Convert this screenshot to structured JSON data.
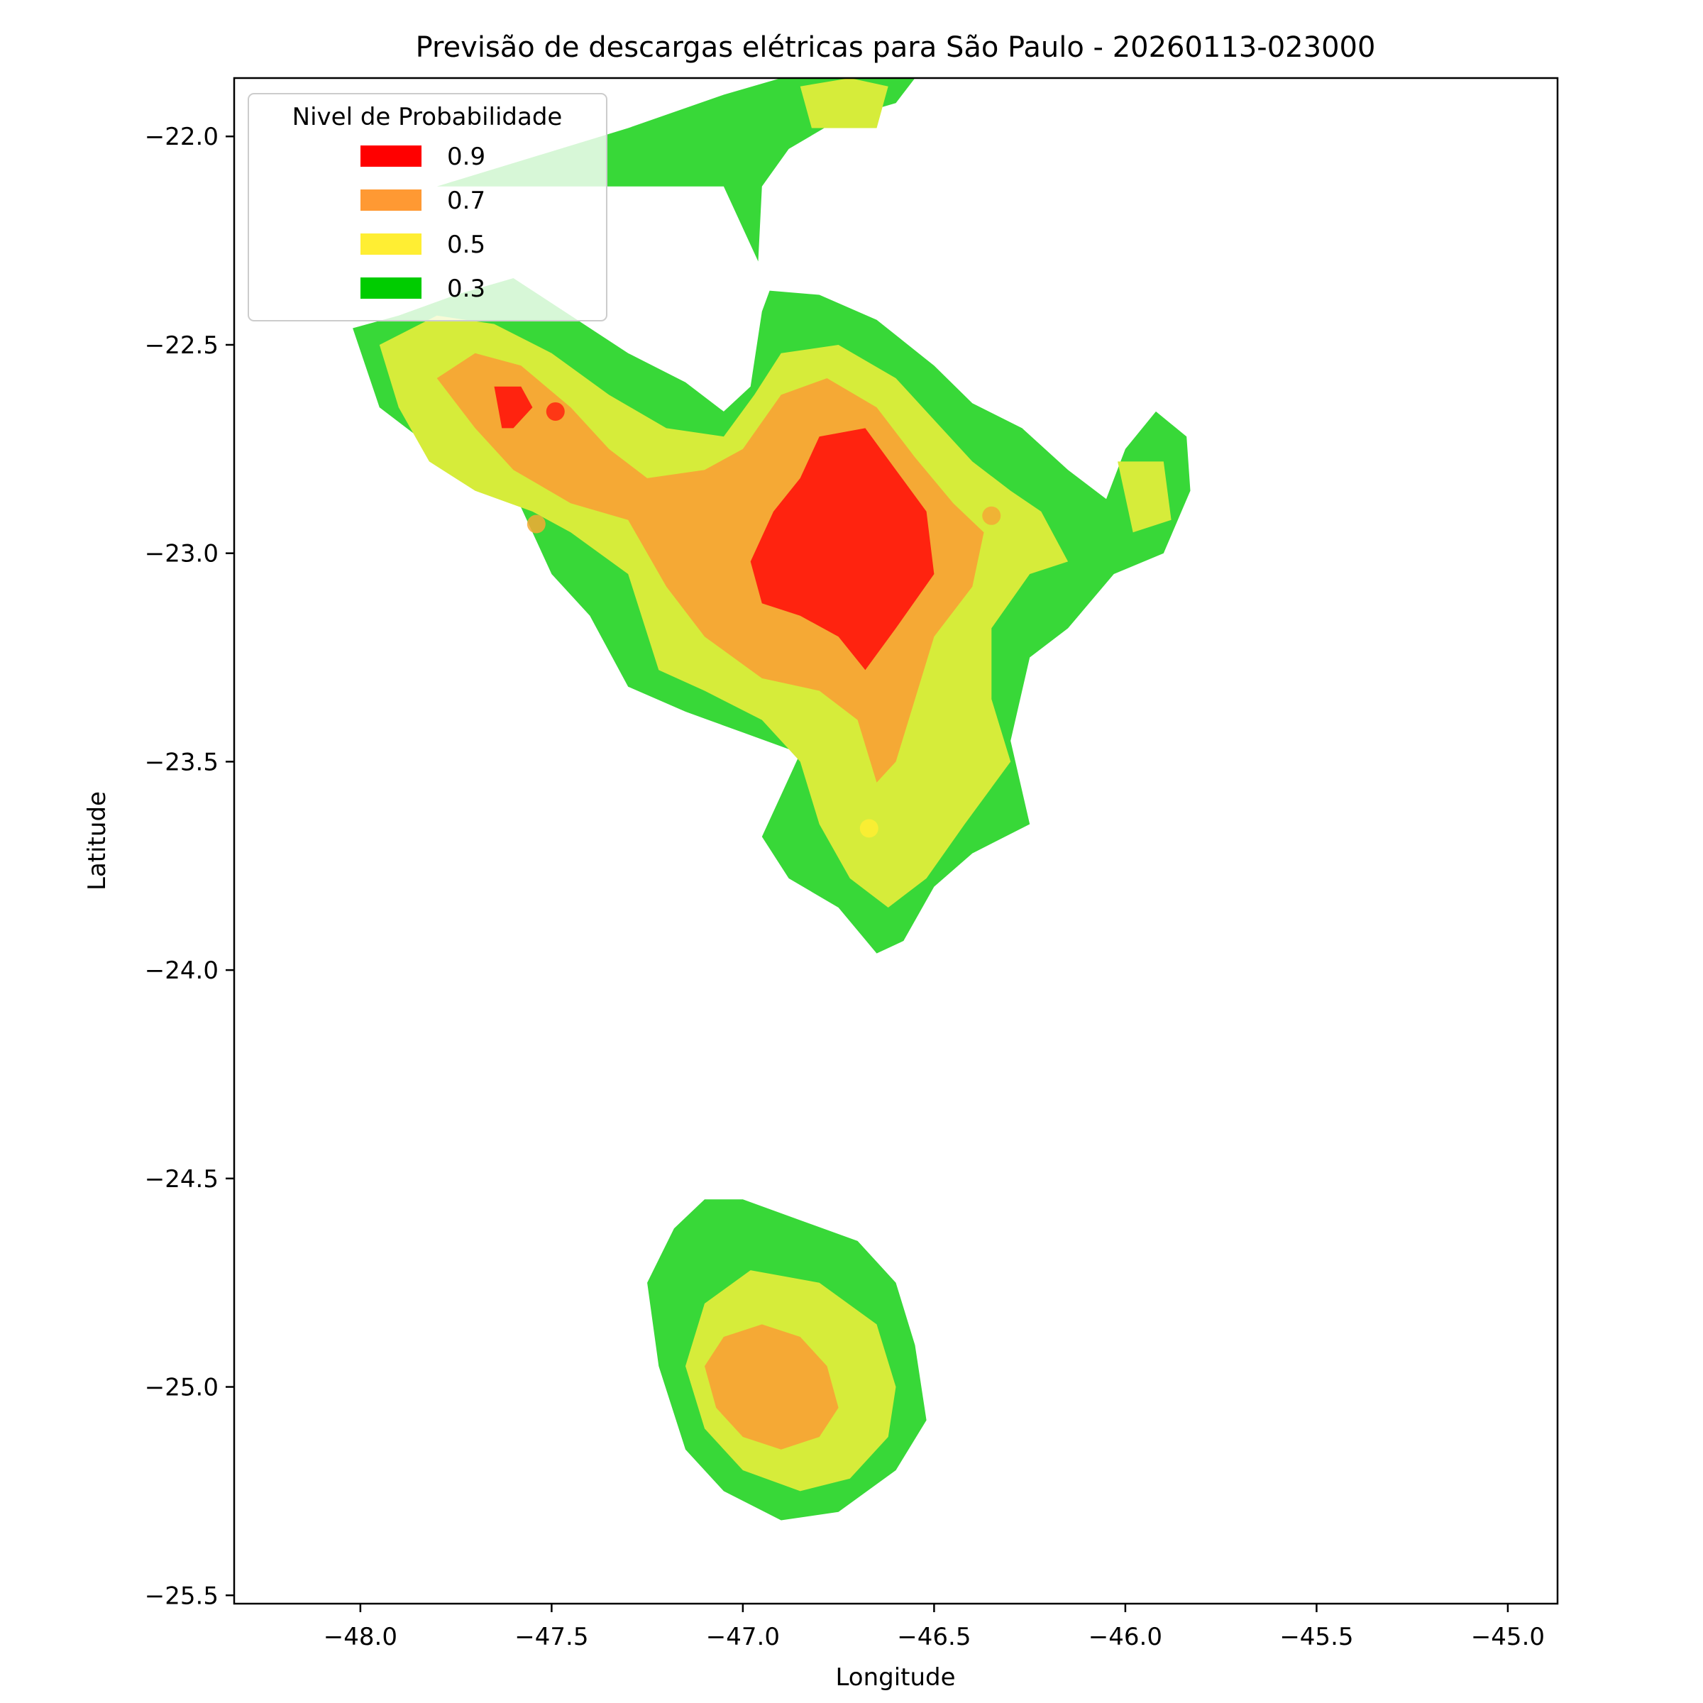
{
  "chart_data": {
    "type": "filled-contour-map",
    "title": "Previsão de descargas elétricas para São Paulo - 20260113-023000",
    "xlabel": "Longitude",
    "ylabel": "Latitude",
    "xlim": [
      -48.33,
      -44.87
    ],
    "ylim": [
      -25.52,
      -21.86
    ],
    "xticks": [
      -48.0,
      -47.5,
      -47.0,
      -46.5,
      -46.0,
      -45.5,
      -45.0
    ],
    "xtick_labels": [
      "−48.0",
      "−47.5",
      "−47.0",
      "−46.5",
      "−46.0",
      "−45.5",
      "−45.0"
    ],
    "yticks": [
      -22.0,
      -22.5,
      -23.0,
      -23.5,
      -24.0,
      -24.5,
      -25.0,
      -25.5
    ],
    "ytick_labels": [
      "−22.0",
      "−22.5",
      "−23.0",
      "−23.5",
      "−24.0",
      "−24.5",
      "−25.0",
      "−25.5"
    ],
    "grid": false,
    "legend": {
      "title": "Nivel de Probabilidade",
      "placement": "upper-left",
      "entries": [
        {
          "label": "0.9",
          "color": "#ff0000"
        },
        {
          "label": "0.7",
          "color": "#ff9933"
        },
        {
          "label": "0.5",
          "color": "#ffee33"
        },
        {
          "label": "0.3",
          "color": "#00cc00"
        }
      ]
    },
    "fill_colors": {
      "0.3": "#38d838",
      "0.5": "#d6ec3a",
      "0.7": "#f5a935",
      "0.9": "#ff230f"
    },
    "regions": [
      {
        "level": "0.3",
        "points": [
          [
            -48.02,
            -22.46
          ],
          [
            -47.9,
            -22.43
          ],
          [
            -47.75,
            -22.38
          ],
          [
            -47.6,
            -22.34
          ],
          [
            -47.45,
            -22.43
          ],
          [
            -47.3,
            -22.52
          ],
          [
            -47.15,
            -22.59
          ],
          [
            -47.05,
            -22.66
          ],
          [
            -46.98,
            -22.6
          ],
          [
            -46.95,
            -22.42
          ],
          [
            -46.93,
            -22.37
          ],
          [
            -46.8,
            -22.38
          ],
          [
            -46.65,
            -22.44
          ],
          [
            -46.5,
            -22.55
          ],
          [
            -46.4,
            -22.64
          ],
          [
            -46.27,
            -22.7
          ],
          [
            -46.15,
            -22.8
          ],
          [
            -46.05,
            -22.87
          ],
          [
            -46.0,
            -22.75
          ],
          [
            -45.92,
            -22.66
          ],
          [
            -45.84,
            -22.72
          ],
          [
            -45.83,
            -22.85
          ],
          [
            -45.9,
            -23.0
          ],
          [
            -46.03,
            -23.05
          ],
          [
            -46.15,
            -23.18
          ],
          [
            -46.25,
            -23.25
          ],
          [
            -46.3,
            -23.45
          ],
          [
            -46.25,
            -23.65
          ],
          [
            -46.4,
            -23.72
          ],
          [
            -46.5,
            -23.8
          ],
          [
            -46.58,
            -23.93
          ],
          [
            -46.65,
            -23.96
          ],
          [
            -46.75,
            -23.85
          ],
          [
            -46.88,
            -23.78
          ],
          [
            -46.95,
            -23.68
          ],
          [
            -46.9,
            -23.58
          ],
          [
            -46.85,
            -23.48
          ],
          [
            -47.0,
            -23.43
          ],
          [
            -47.15,
            -23.38
          ],
          [
            -47.3,
            -23.32
          ],
          [
            -47.4,
            -23.15
          ],
          [
            -47.5,
            -23.05
          ],
          [
            -47.6,
            -22.85
          ],
          [
            -47.75,
            -22.78
          ],
          [
            -47.85,
            -22.72
          ],
          [
            -47.95,
            -22.65
          ]
        ]
      },
      {
        "level": "0.3",
        "points": [
          [
            -47.8,
            -22.12
          ],
          [
            -47.55,
            -22.05
          ],
          [
            -47.3,
            -21.98
          ],
          [
            -47.05,
            -21.9
          ],
          [
            -46.9,
            -21.86
          ],
          [
            -46.55,
            -21.86
          ],
          [
            -46.6,
            -21.92
          ],
          [
            -46.75,
            -21.96
          ],
          [
            -46.88,
            -22.03
          ],
          [
            -46.95,
            -22.12
          ],
          [
            -46.96,
            -22.3
          ],
          [
            -47.05,
            -22.12
          ],
          [
            -47.3,
            -22.12
          ],
          [
            -47.55,
            -22.12
          ]
        ]
      },
      {
        "level": "0.3",
        "points": [
          [
            -47.0,
            -24.55
          ],
          [
            -46.85,
            -24.6
          ],
          [
            -46.7,
            -24.65
          ],
          [
            -46.6,
            -24.75
          ],
          [
            -46.55,
            -24.9
          ],
          [
            -46.52,
            -25.08
          ],
          [
            -46.6,
            -25.2
          ],
          [
            -46.75,
            -25.3
          ],
          [
            -46.9,
            -25.32
          ],
          [
            -47.05,
            -25.25
          ],
          [
            -47.15,
            -25.15
          ],
          [
            -47.22,
            -24.95
          ],
          [
            -47.25,
            -24.75
          ],
          [
            -47.18,
            -24.62
          ],
          [
            -47.1,
            -24.55
          ]
        ]
      },
      {
        "level": "0.5",
        "points": [
          [
            -47.95,
            -22.5
          ],
          [
            -47.8,
            -22.43
          ],
          [
            -47.65,
            -22.45
          ],
          [
            -47.5,
            -22.52
          ],
          [
            -47.35,
            -22.62
          ],
          [
            -47.2,
            -22.7
          ],
          [
            -47.05,
            -22.72
          ],
          [
            -46.97,
            -22.62
          ],
          [
            -46.9,
            -22.52
          ],
          [
            -46.75,
            -22.5
          ],
          [
            -46.6,
            -22.58
          ],
          [
            -46.5,
            -22.68
          ],
          [
            -46.4,
            -22.78
          ],
          [
            -46.3,
            -22.85
          ],
          [
            -46.22,
            -22.9
          ],
          [
            -46.15,
            -23.02
          ],
          [
            -46.25,
            -23.05
          ],
          [
            -46.35,
            -23.18
          ],
          [
            -46.35,
            -23.35
          ],
          [
            -46.3,
            -23.5
          ],
          [
            -46.42,
            -23.65
          ],
          [
            -46.52,
            -23.78
          ],
          [
            -46.62,
            -23.85
          ],
          [
            -46.72,
            -23.78
          ],
          [
            -46.8,
            -23.65
          ],
          [
            -46.85,
            -23.5
          ],
          [
            -46.95,
            -23.4
          ],
          [
            -47.1,
            -23.33
          ],
          [
            -47.22,
            -23.28
          ],
          [
            -47.3,
            -23.05
          ],
          [
            -47.45,
            -22.95
          ],
          [
            -47.55,
            -22.9
          ],
          [
            -47.7,
            -22.85
          ],
          [
            -47.82,
            -22.78
          ],
          [
            -47.9,
            -22.65
          ]
        ]
      },
      {
        "level": "0.5",
        "points": [
          [
            -46.02,
            -22.78
          ],
          [
            -45.9,
            -22.78
          ],
          [
            -45.88,
            -22.92
          ],
          [
            -45.98,
            -22.95
          ]
        ]
      },
      {
        "level": "0.5",
        "points": [
          [
            -46.85,
            -21.88
          ],
          [
            -46.72,
            -21.86
          ],
          [
            -46.62,
            -21.88
          ],
          [
            -46.65,
            -21.98
          ],
          [
            -46.82,
            -21.98
          ]
        ]
      },
      {
        "level": "0.5",
        "points": [
          [
            -46.98,
            -24.72
          ],
          [
            -46.8,
            -24.75
          ],
          [
            -46.65,
            -24.85
          ],
          [
            -46.6,
            -25.0
          ],
          [
            -46.62,
            -25.12
          ],
          [
            -46.72,
            -25.22
          ],
          [
            -46.85,
            -25.25
          ],
          [
            -47.0,
            -25.2
          ],
          [
            -47.1,
            -25.1
          ],
          [
            -47.15,
            -24.95
          ],
          [
            -47.1,
            -24.8
          ]
        ]
      },
      {
        "level": "0.7",
        "points": [
          [
            -47.8,
            -22.58
          ],
          [
            -47.7,
            -22.52
          ],
          [
            -47.58,
            -22.55
          ],
          [
            -47.45,
            -22.65
          ],
          [
            -47.35,
            -22.75
          ],
          [
            -47.25,
            -22.82
          ],
          [
            -47.1,
            -22.8
          ],
          [
            -47.0,
            -22.75
          ],
          [
            -46.9,
            -22.62
          ],
          [
            -46.78,
            -22.58
          ],
          [
            -46.65,
            -22.65
          ],
          [
            -46.55,
            -22.77
          ],
          [
            -46.45,
            -22.88
          ],
          [
            -46.37,
            -22.95
          ],
          [
            -46.4,
            -23.08
          ],
          [
            -46.5,
            -23.2
          ],
          [
            -46.55,
            -23.35
          ],
          [
            -46.6,
            -23.5
          ],
          [
            -46.65,
            -23.55
          ],
          [
            -46.7,
            -23.4
          ],
          [
            -46.8,
            -23.33
          ],
          [
            -46.95,
            -23.3
          ],
          [
            -47.1,
            -23.2
          ],
          [
            -47.2,
            -23.08
          ],
          [
            -47.3,
            -22.92
          ],
          [
            -47.45,
            -22.88
          ],
          [
            -47.6,
            -22.8
          ],
          [
            -47.7,
            -22.7
          ]
        ]
      },
      {
        "level": "0.7",
        "points": [
          [
            -46.95,
            -24.85
          ],
          [
            -46.85,
            -24.88
          ],
          [
            -46.78,
            -24.95
          ],
          [
            -46.75,
            -25.05
          ],
          [
            -46.8,
            -25.12
          ],
          [
            -46.9,
            -25.15
          ],
          [
            -47.0,
            -25.12
          ],
          [
            -47.07,
            -25.05
          ],
          [
            -47.1,
            -24.95
          ],
          [
            -47.05,
            -24.88
          ]
        ]
      },
      {
        "level": "0.9",
        "points": [
          [
            -47.65,
            -22.6
          ],
          [
            -47.58,
            -22.6
          ],
          [
            -47.55,
            -22.65
          ],
          [
            -47.6,
            -22.7
          ],
          [
            -47.63,
            -22.7
          ]
        ]
      },
      {
        "level": "0.9",
        "points": [
          [
            -46.8,
            -22.72
          ],
          [
            -46.68,
            -22.7
          ],
          [
            -46.6,
            -22.8
          ],
          [
            -46.52,
            -22.9
          ],
          [
            -46.5,
            -23.05
          ],
          [
            -46.6,
            -23.18
          ],
          [
            -46.68,
            -23.28
          ],
          [
            -46.75,
            -23.2
          ],
          [
            -46.85,
            -23.15
          ],
          [
            -46.95,
            -23.12
          ],
          [
            -46.98,
            -23.02
          ],
          [
            -46.92,
            -22.9
          ],
          [
            -46.85,
            -22.82
          ]
        ]
      }
    ],
    "markers": [
      {
        "lon": -47.49,
        "lat": -22.66,
        "color": "#ff230f"
      },
      {
        "lon": -47.54,
        "lat": -22.93,
        "color": "#f5a935"
      },
      {
        "lon": -46.35,
        "lat": -22.91,
        "color": "#f5a935"
      },
      {
        "lon": -46.67,
        "lat": -23.66,
        "color": "#ffee33"
      }
    ]
  }
}
